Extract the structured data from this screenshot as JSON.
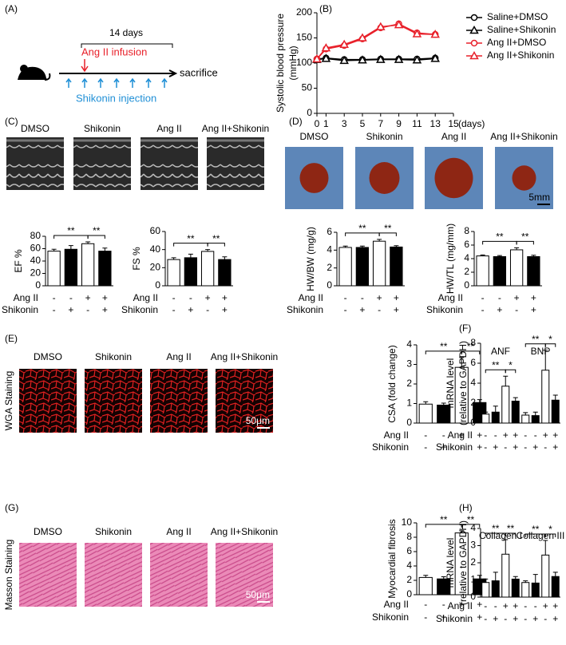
{
  "panels": {
    "A": {
      "label": "(A)",
      "duration": "14 days",
      "infusion": "Ang II infusion",
      "endpoint": "sacrifice",
      "injection": "Shikonin injection"
    },
    "C": {
      "label": "(C)",
      "images": [
        "DMSO",
        "Shikonin",
        "Ang II",
        "Ang II+Shikonin"
      ]
    },
    "D": {
      "label": "(D)",
      "images": [
        "DMSO",
        "Shikonin",
        "Ang II",
        "Ang II+Shikonin"
      ],
      "scale_bar": "5mm"
    },
    "E": {
      "label": "(E)",
      "stain": "WGA Staining",
      "images": [
        "DMSO",
        "Shikonin",
        "Ang II",
        "Ang II+Shikonin"
      ],
      "scale_bar": "50μm"
    },
    "G": {
      "label": "(G)",
      "stain": "Masson Staining",
      "images": [
        "DMSO",
        "Shikonin",
        "Ang II",
        "Ang II+Shikonin"
      ],
      "scale_bar": "50μm"
    }
  },
  "chart_data": [
    {
      "type": "line",
      "panel": "(B)",
      "y_label": [
        "Systolic blood pressure",
        "(mmHg)"
      ],
      "x_label": "(days)",
      "x": [
        0,
        1,
        3,
        5,
        7,
        9,
        11,
        13
      ],
      "xlim": [
        0,
        15
      ],
      "xticks": [
        0,
        1,
        3,
        5,
        7,
        9,
        11,
        13,
        15
      ],
      "ylim": [
        0,
        200
      ],
      "yticks": [
        0,
        50,
        100,
        150,
        200
      ],
      "series": [
        {
          "name": "Saline+DMSO",
          "color": "#000000",
          "marker": "circle",
          "values": [
            108,
            110,
            107,
            107,
            108,
            108,
            108,
            110
          ]
        },
        {
          "name": "Saline+Shikonin",
          "color": "#000000",
          "marker": "triangle",
          "values": [
            107,
            109,
            105,
            106,
            107,
            107,
            106,
            109
          ]
        },
        {
          "name": "Ang II+DMSO",
          "color": "#e8202a",
          "marker": "circle",
          "values": [
            108,
            128,
            135,
            148,
            170,
            178,
            160,
            157
          ]
        },
        {
          "name": "Ang II+Shikonin",
          "color": "#e8202a",
          "marker": "triangle",
          "values": [
            108,
            130,
            137,
            150,
            172,
            176,
            158,
            157
          ]
        }
      ]
    },
    {
      "type": "bar",
      "y_label": "EF %",
      "ylim": [
        0,
        80
      ],
      "yticks": [
        0,
        20,
        40,
        60,
        80
      ],
      "values": [
        56,
        59,
        68,
        56
      ],
      "errors": [
        3,
        6,
        3,
        5
      ],
      "colors": [
        "#ffffff",
        "#000000",
        "#ffffff",
        "#000000"
      ],
      "significance": [
        {
          "label": "**",
          "between": [
            0,
            2
          ]
        },
        {
          "label": "**",
          "between": [
            2,
            3
          ]
        }
      ],
      "treatments": [
        {
          "name": "Ang II",
          "signs": [
            "-",
            "-",
            "+",
            "+"
          ]
        },
        {
          "name": "Shikonin",
          "signs": [
            "-",
            "+",
            "-",
            "+"
          ]
        }
      ]
    },
    {
      "type": "bar",
      "y_label": "FS %",
      "ylim": [
        0,
        60
      ],
      "yticks": [
        0,
        20,
        40,
        60
      ],
      "values": [
        29,
        31,
        38,
        29
      ],
      "errors": [
        2,
        4,
        2,
        3
      ],
      "colors": [
        "#ffffff",
        "#000000",
        "#ffffff",
        "#000000"
      ],
      "significance": [
        {
          "label": "**",
          "between": [
            0,
            2
          ]
        },
        {
          "label": "**",
          "between": [
            2,
            3
          ]
        }
      ],
      "treatments": [
        {
          "name": "Ang II",
          "signs": [
            "-",
            "-",
            "+",
            "+"
          ]
        },
        {
          "name": "Shikonin",
          "signs": [
            "-",
            "+",
            "-",
            "+"
          ]
        }
      ]
    },
    {
      "type": "bar",
      "y_label": "HW/BW (mg/g)",
      "ylim": [
        0,
        6
      ],
      "yticks": [
        0,
        2,
        4,
        6
      ],
      "values": [
        4.3,
        4.3,
        5.0,
        4.35
      ],
      "errors": [
        0.15,
        0.15,
        0.2,
        0.15
      ],
      "colors": [
        "#ffffff",
        "#000000",
        "#ffffff",
        "#000000"
      ],
      "significance": [
        {
          "label": "**",
          "between": [
            0,
            2
          ]
        },
        {
          "label": "**",
          "between": [
            2,
            3
          ]
        }
      ],
      "treatments": [
        {
          "name": "Ang II",
          "signs": [
            "-",
            "-",
            "+",
            "+"
          ]
        },
        {
          "name": "Shikonin",
          "signs": [
            "-",
            "+",
            "-",
            "+"
          ]
        }
      ]
    },
    {
      "type": "bar",
      "y_label": "HW/TL (mg/mm)",
      "ylim": [
        0,
        8
      ],
      "yticks": [
        0,
        2,
        4,
        6,
        8
      ],
      "values": [
        4.4,
        4.3,
        5.3,
        4.3
      ],
      "errors": [
        0.15,
        0.15,
        0.3,
        0.2
      ],
      "colors": [
        "#ffffff",
        "#000000",
        "#ffffff",
        "#000000"
      ],
      "significance": [
        {
          "label": "**",
          "between": [
            0,
            2
          ]
        },
        {
          "label": "**",
          "between": [
            2,
            3
          ]
        }
      ],
      "treatments": [
        {
          "name": "Ang II",
          "signs": [
            "-",
            "-",
            "+",
            "+"
          ]
        },
        {
          "name": "Shikonin",
          "signs": [
            "-",
            "+",
            "-",
            "+"
          ]
        }
      ]
    },
    {
      "type": "bar",
      "y_label": "CSA (fold change)",
      "ylim": [
        0,
        4
      ],
      "yticks": [
        0,
        1,
        2,
        3,
        4
      ],
      "values": [
        0.97,
        0.92,
        2.85,
        1.05
      ],
      "errors": [
        0.12,
        0.1,
        0.5,
        0.15
      ],
      "colors": [
        "#ffffff",
        "#000000",
        "#ffffff",
        "#000000"
      ],
      "significance": [
        {
          "label": "**",
          "between": [
            0,
            2
          ]
        },
        {
          "label": "**",
          "between": [
            2,
            3
          ]
        }
      ],
      "treatments": [
        {
          "name": "Ang II",
          "signs": [
            "-",
            "-",
            "+",
            "+"
          ]
        },
        {
          "name": "Shikonin",
          "signs": [
            "-",
            "+",
            "-",
            "+"
          ]
        }
      ]
    },
    {
      "type": "grouped_bar",
      "panel": "(F)",
      "y_label": [
        "mRNA level",
        "(relative to GAPDH)"
      ],
      "ylim": [
        0,
        8
      ],
      "yticks": [
        0,
        2,
        4,
        6,
        8
      ],
      "colors": [
        "#ffffff",
        "#000000",
        "#ffffff",
        "#000000"
      ],
      "groups": [
        {
          "name": "ANF",
          "values": [
            0.9,
            1.1,
            3.7,
            2.2
          ],
          "errors": [
            0.2,
            0.6,
            1.0,
            0.35
          ],
          "significance": [
            {
              "label": "**",
              "between": [
                0,
                2
              ]
            },
            {
              "label": "*",
              "between": [
                2,
                3
              ]
            }
          ]
        },
        {
          "name": "BNP",
          "values": [
            0.8,
            0.75,
            5.3,
            2.3
          ],
          "errors": [
            0.25,
            0.35,
            2.0,
            0.5
          ],
          "significance": [
            {
              "label": "**",
              "between": [
                0,
                2
              ]
            },
            {
              "label": "*",
              "between": [
                2,
                3
              ]
            }
          ]
        }
      ],
      "treatments": [
        {
          "name": "Ang II",
          "signs": [
            "-",
            "-",
            "+",
            "+",
            "-",
            "-",
            "+",
            "+"
          ]
        },
        {
          "name": "Shikonin",
          "signs": [
            "-",
            "+",
            "-",
            "+",
            "-",
            "+",
            "-",
            "+"
          ]
        }
      ]
    },
    {
      "type": "bar",
      "y_label": "Myocardial fibrosis",
      "ylim": [
        0,
        10
      ],
      "yticks": [
        0,
        2,
        4,
        6,
        8,
        10
      ],
      "values": [
        2.4,
        2.2,
        8.6,
        2.2
      ],
      "errors": [
        0.3,
        0.3,
        0.3,
        0.5
      ],
      "colors": [
        "#ffffff",
        "#000000",
        "#ffffff",
        "#000000"
      ],
      "significance": [
        {
          "label": "**",
          "between": [
            0,
            2
          ]
        },
        {
          "label": "**",
          "between": [
            2,
            3
          ]
        }
      ],
      "treatments": [
        {
          "name": "Ang II",
          "signs": [
            "-",
            "-",
            "+",
            "+"
          ]
        },
        {
          "name": "Shikonin",
          "signs": [
            "-",
            "+",
            "-",
            "+"
          ]
        }
      ]
    },
    {
      "type": "grouped_bar",
      "panel": "(H)",
      "y_label": [
        "mRNA level",
        "(relative to GAPDH)"
      ],
      "ylim": [
        0,
        4
      ],
      "yticks": [
        0,
        1,
        2,
        3,
        4
      ],
      "colors": [
        "#ffffff",
        "#000000",
        "#ffffff",
        "#000000"
      ],
      "groups": [
        {
          "name": "Collagen I",
          "values": [
            0.85,
            0.95,
            2.5,
            1.05
          ],
          "errors": [
            0.2,
            0.5,
            0.85,
            0.15
          ],
          "significance": [
            {
              "label": "**",
              "between": [
                0,
                2
              ]
            },
            {
              "label": "**",
              "between": [
                2,
                3
              ]
            }
          ]
        },
        {
          "name": "Collagen III",
          "values": [
            0.85,
            0.82,
            2.45,
            1.2
          ],
          "errors": [
            0.1,
            0.5,
            0.85,
            0.25
          ],
          "significance": [
            {
              "label": "**",
              "between": [
                0,
                2
              ]
            },
            {
              "label": "*",
              "between": [
                2,
                3
              ]
            }
          ]
        }
      ],
      "treatments": [
        {
          "name": "Ang II",
          "signs": [
            "-",
            "-",
            "+",
            "+",
            "-",
            "-",
            "+",
            "+"
          ]
        },
        {
          "name": "Shikonin",
          "signs": [
            "-",
            "+",
            "-",
            "+",
            "-",
            "+",
            "-",
            "+"
          ]
        }
      ]
    }
  ]
}
